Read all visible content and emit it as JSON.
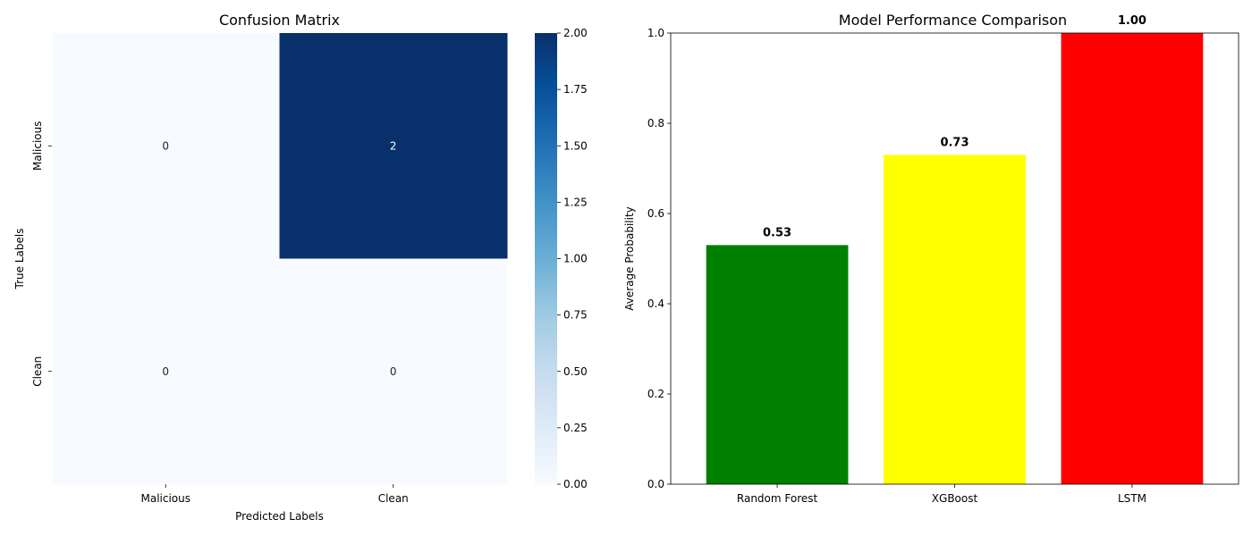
{
  "chart_data": [
    {
      "type": "heatmap",
      "title": "Confusion Matrix",
      "xlabel": "Predicted Labels",
      "ylabel": "True Labels",
      "x_categories": [
        "Malicious",
        "Clean"
      ],
      "y_categories": [
        "Malicious",
        "Clean"
      ],
      "values": [
        [
          0,
          2
        ],
        [
          0,
          0
        ]
      ],
      "colormap": {
        "low": "#f7fbff",
        "high": "#08306b",
        "name": "Blues"
      },
      "colorbar": {
        "range": [
          0,
          2
        ],
        "ticks": [
          "0.00",
          "0.25",
          "0.50",
          "0.75",
          "1.00",
          "1.25",
          "1.50",
          "1.75",
          "2.00"
        ]
      }
    },
    {
      "type": "bar",
      "title": "Model Performance Comparison",
      "xlabel": "",
      "ylabel": "Average Probability",
      "categories": [
        "Random Forest",
        "XGBoost",
        "LSTM"
      ],
      "values": [
        0.53,
        0.73,
        1.0
      ],
      "value_labels": [
        "0.53",
        "0.73",
        "1.00"
      ],
      "colors": [
        "#008000",
        "#ffff00",
        "#ff0000"
      ],
      "ylim": [
        0,
        1.0
      ],
      "yticks": [
        "0.0",
        "0.2",
        "0.4",
        "0.6",
        "0.8",
        "1.0"
      ],
      "grid": false
    }
  ]
}
